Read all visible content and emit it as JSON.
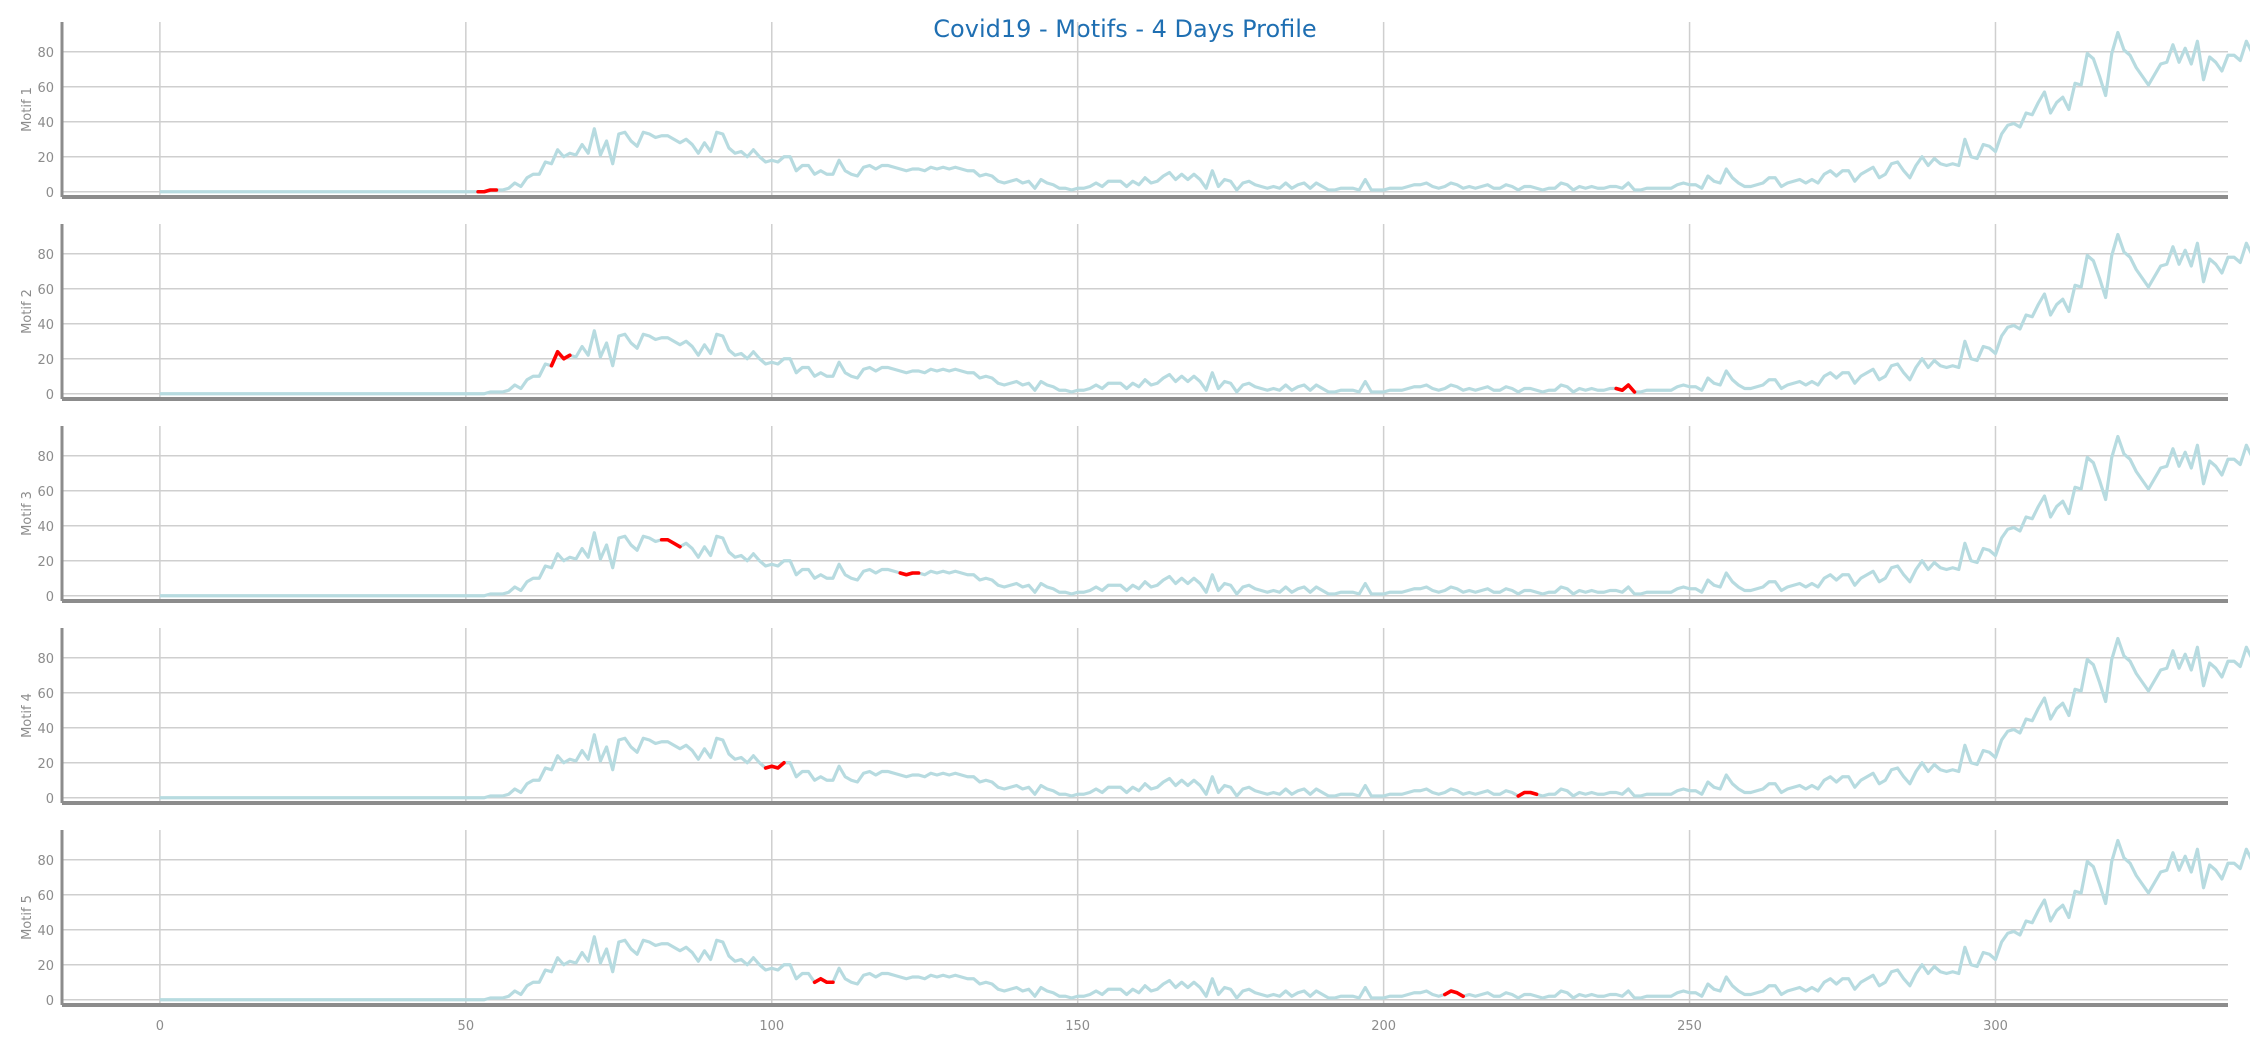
{
  "chart_data": {
    "type": "line",
    "title": "Covid19 - Motifs - 4 Days Profile",
    "xlim": [
      -16,
      338
    ],
    "ylim": [
      -3,
      97
    ],
    "xticks": [
      0,
      50,
      100,
      150,
      200,
      250,
      300
    ],
    "yticks": [
      0,
      20,
      40,
      60,
      80
    ],
    "grid": true,
    "colors": {
      "series": "#b7dbe0",
      "motif": "#ff0000",
      "grid": "#cfcfcf",
      "axis": "#8c8c8c",
      "title": "#1f6fb2"
    },
    "series": {
      "x_start": 0,
      "values": [
        0,
        0,
        0,
        0,
        0,
        0,
        0,
        0,
        0,
        0,
        0,
        0,
        0,
        0,
        0,
        0,
        0,
        0,
        0,
        0,
        0,
        0,
        0,
        0,
        0,
        0,
        0,
        0,
        0,
        0,
        0,
        0,
        0,
        0,
        0,
        0,
        0,
        0,
        0,
        0,
        0,
        0,
        0,
        0,
        0,
        0,
        0,
        0,
        0,
        0,
        0,
        0,
        0,
        0,
        1,
        1,
        1,
        2,
        5,
        3,
        8,
        10,
        10,
        17,
        16,
        24,
        20,
        22,
        21,
        27,
        22,
        36,
        21,
        29,
        16,
        33,
        34,
        29,
        26,
        34,
        33,
        31,
        32,
        32,
        30,
        28,
        30,
        27,
        22,
        28,
        23,
        34,
        33,
        25,
        22,
        23,
        20,
        24,
        20,
        17,
        18,
        17,
        20,
        20,
        12,
        15,
        15,
        10,
        12,
        10,
        10,
        18,
        12,
        10,
        9,
        14,
        15,
        13,
        15,
        15,
        14,
        13,
        12,
        13,
        13,
        12,
        14,
        13,
        14,
        13,
        14,
        13,
        12,
        12,
        9,
        10,
        9,
        6,
        5,
        6,
        7,
        5,
        6,
        2,
        7,
        5,
        4,
        2,
        2,
        1,
        2,
        2,
        3,
        5,
        3,
        6,
        6,
        6,
        3,
        6,
        4,
        8,
        5,
        6,
        9,
        11,
        7,
        10,
        7,
        10,
        7,
        2,
        12,
        3,
        7,
        6,
        1,
        5,
        6,
        4,
        3,
        2,
        3,
        2,
        5,
        2,
        4,
        5,
        2,
        5,
        3,
        1,
        1,
        2,
        2,
        2,
        1,
        7,
        1,
        1,
        1,
        2,
        2,
        2,
        3,
        4,
        4,
        5,
        3,
        2,
        3,
        5,
        4,
        2,
        3,
        2,
        3,
        4,
        2,
        2,
        4,
        3,
        1,
        3,
        3,
        2,
        1,
        2,
        2,
        5,
        4,
        1,
        3,
        2,
        3,
        2,
        2,
        3,
        3,
        2,
        5,
        1,
        1,
        2,
        2,
        2,
        2,
        2,
        4,
        5,
        4,
        4,
        2,
        9,
        6,
        5,
        13,
        8,
        5,
        3,
        3,
        4,
        5,
        8,
        8,
        3,
        5,
        6,
        7,
        5,
        7,
        5,
        10,
        12,
        9,
        12,
        12,
        6,
        10,
        12,
        14,
        8,
        10,
        16,
        17,
        12,
        8,
        15,
        20,
        15,
        19,
        16,
        15,
        16,
        15,
        30,
        20,
        19,
        27,
        26,
        23,
        33,
        38,
        39,
        37,
        45,
        44,
        51,
        57,
        45,
        51,
        54,
        47,
        62,
        61,
        79,
        76,
        66,
        55,
        79,
        91,
        81,
        78,
        71,
        66,
        61,
        67,
        73,
        74,
        84,
        74,
        82,
        73,
        86,
        64,
        77,
        74,
        69,
        78,
        78,
        75,
        86,
        79,
        81,
        70
      ]
    },
    "panels": [
      {
        "ylabel": "Motif 1",
        "motifs": [
          52
        ]
      },
      {
        "ylabel": "Motif 2",
        "motifs": [
          64,
          238
        ]
      },
      {
        "ylabel": "Motif 3",
        "motifs": [
          82,
          121
        ]
      },
      {
        "ylabel": "Motif 4",
        "motifs": [
          99,
          222
        ]
      },
      {
        "ylabel": "Motif 5",
        "motifs": [
          107,
          210
        ]
      }
    ],
    "motif_length": 4
  }
}
